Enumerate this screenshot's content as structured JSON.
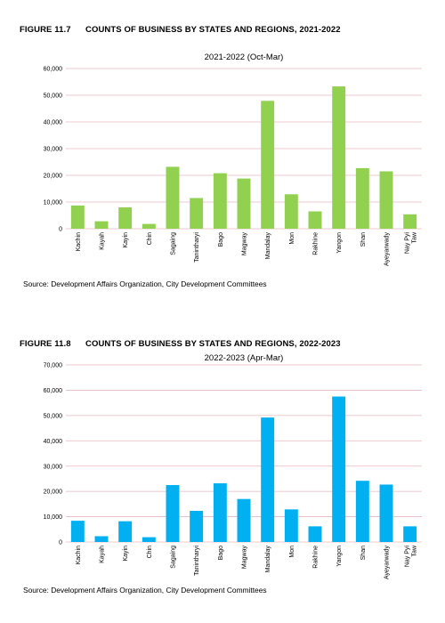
{
  "figure1": {
    "number": "FIGURE 11.7",
    "title": "COUNTS OF BUSINESS BY STATES AND REGIONS, 2021-2022",
    "source": "Source: Development Affairs Organization, City Development Committees"
  },
  "figure2": {
    "number": "FIGURE 11.8",
    "title": "COUNTS OF BUSINESS BY STATES AND REGIONS, 2022-2023",
    "source": "Source: Development Affairs Organization, City Development Committees"
  },
  "chart_data": [
    {
      "type": "bar",
      "title": "2021-2022 (Oct-Mar)",
      "categories": [
        "Kachin",
        "Kayah",
        "Kayin",
        "Chin",
        "Sagaing",
        "Tanintharyi",
        "Bago",
        "Magway",
        "Mandalay",
        "Mon",
        "Rakhine",
        "Yangon",
        "Shan",
        "Ayeyarwady",
        "Nay Pyi Taw"
      ],
      "values": [
        8700,
        2800,
        8000,
        1800,
        23200,
        11500,
        20800,
        18800,
        47900,
        12900,
        6500,
        53300,
        22700,
        21500,
        5400
      ],
      "ylim": [
        0,
        60000
      ],
      "yticks": [
        "0",
        "10,000",
        "20,000",
        "30,000",
        "40,000",
        "50,000",
        "60,000"
      ],
      "grid": true,
      "color": "#92D050"
    },
    {
      "type": "bar",
      "title": "2022-2023 (Apr-Mar)",
      "categories": [
        "Kachin",
        "Kayah",
        "Kayin",
        "Chin",
        "Sagaing",
        "Tanintharyi",
        "Bago",
        "Magway",
        "Mandalay",
        "Mon",
        "Rakhine",
        "Yangon",
        "Shan",
        "Ayeyarwady",
        "Nay Pyi Taw"
      ],
      "values": [
        8400,
        2300,
        8200,
        1900,
        22500,
        12300,
        23200,
        17000,
        49200,
        12900,
        6200,
        57500,
        24200,
        22700,
        6200
      ],
      "ylim": [
        0,
        70000
      ],
      "yticks": [
        "0",
        "10,000",
        "20,000",
        "30,000",
        "40,000",
        "50,000",
        "60,000",
        "70,000"
      ],
      "grid": true,
      "color": "#00B0F0"
    }
  ]
}
